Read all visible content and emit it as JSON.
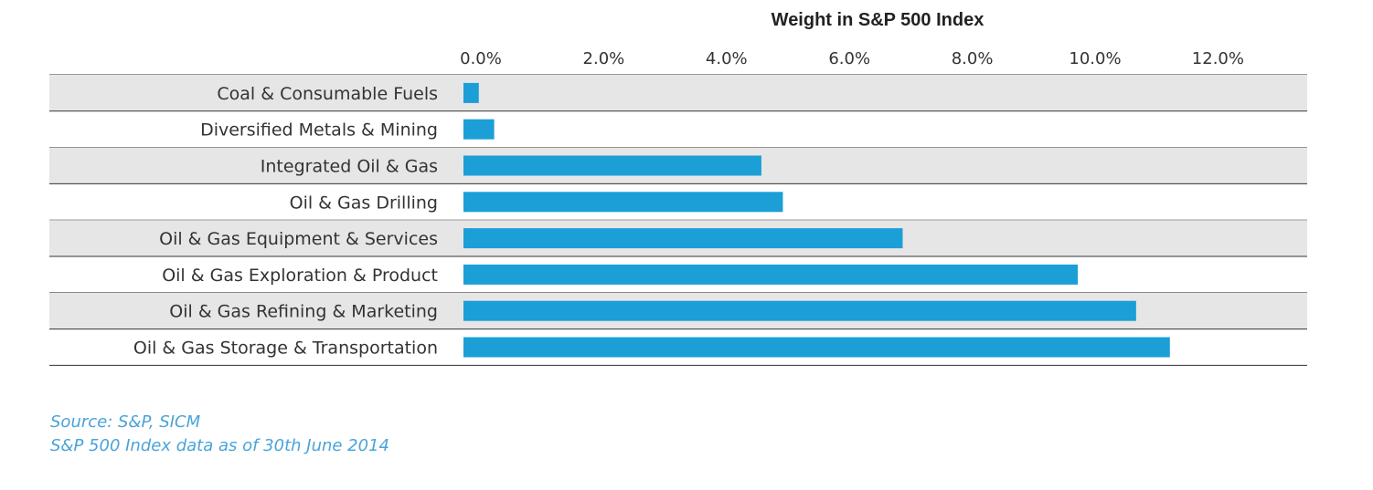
{
  "chart_data": {
    "type": "bar",
    "orientation": "horizontal",
    "title": "Weight in S&P 500 Index",
    "categories": [
      "Coal  & Consumable Fuels",
      "Diversified Metals & Mining",
      "Integrated Oil & Gas",
      "Oil & Gas Drilling",
      "Oil & Gas Equipment & Services",
      "Oil & Gas Exploration & Product",
      "Oil & Gas Refining & Marketing",
      "Oil & Gas Storage & Transportation"
    ],
    "values": [
      0.25,
      0.5,
      4.85,
      5.2,
      7.15,
      10.0,
      10.95,
      11.5
    ],
    "xlim": [
      0,
      13.5
    ],
    "ticks": [
      0,
      2,
      4,
      6,
      8,
      10,
      12
    ],
    "tick_labels": [
      "0.0%",
      "2.0%",
      "4.0%",
      "6.0%",
      "8.0%",
      "10.0%",
      "12.0%"
    ],
    "tick_position": "top",
    "bar_color": "#1b9fd6",
    "band_color": "#e6e6e6",
    "grid": false
  },
  "source": {
    "line1": "Source: S&P, SICM",
    "line2": "S&P 500 Index data as of 30th June 2014"
  }
}
